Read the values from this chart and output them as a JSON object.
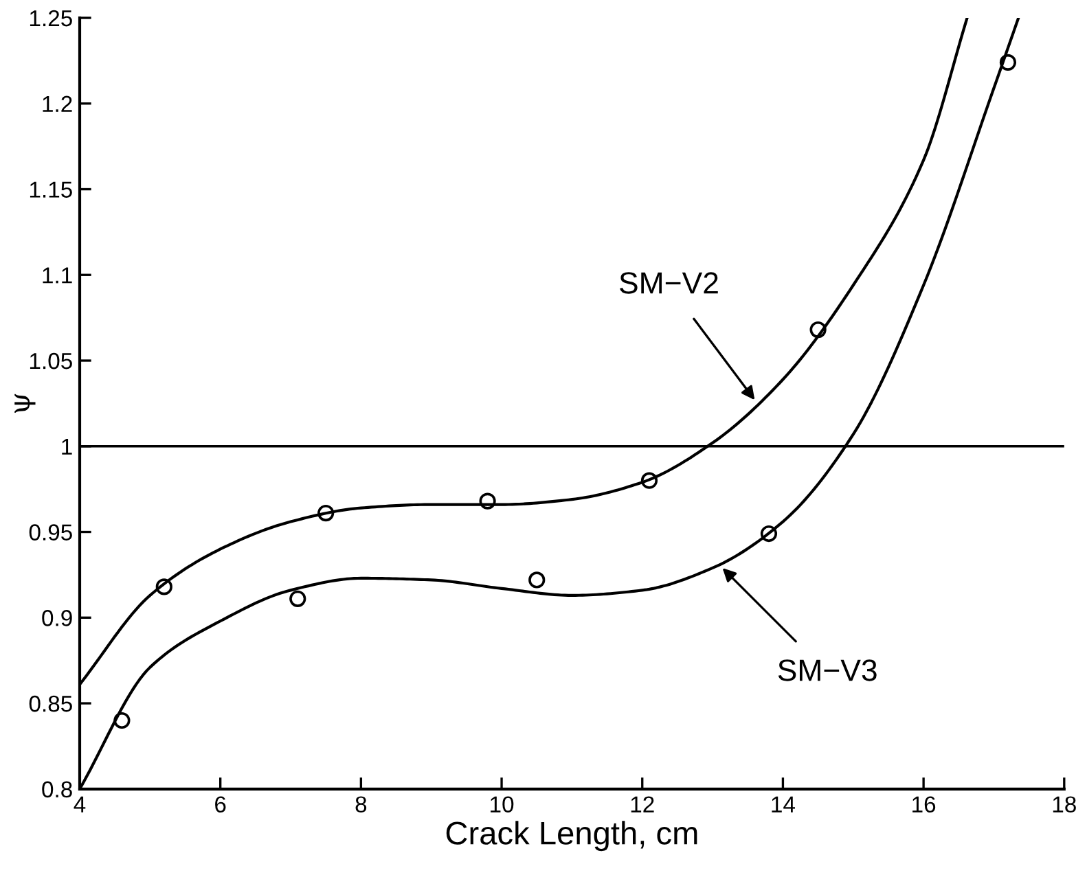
{
  "chart_data": {
    "type": "line",
    "xlabel": "Crack Length, cm",
    "ylabel": "ψ",
    "xlim": [
      4,
      18
    ],
    "ylim": [
      0.8,
      1.25
    ],
    "xticks": [
      4,
      6,
      8,
      10,
      12,
      14,
      16,
      18
    ],
    "yticks": [
      0.8,
      0.85,
      0.9,
      0.95,
      1,
      1.05,
      1.1,
      1.15,
      1.2,
      1.25
    ],
    "grid": false,
    "line_style": "solid",
    "series": [
      {
        "color": "#000000",
        "marker": "none",
        "x": [
          4,
          5,
          6,
          7,
          8,
          9,
          10,
          11,
          12,
          13,
          14,
          15,
          16,
          16.62
        ],
        "values": [
          0.861,
          0.913,
          0.94,
          0.956,
          0.964,
          0.966,
          0.966,
          0.969,
          0.979,
          1.002,
          1.039,
          1.094,
          1.167,
          1.25
        ]
      },
      {
        "color": "#000000",
        "marker": "none",
        "x": [
          4,
          5,
          6,
          7,
          8,
          9,
          10,
          11,
          12,
          13,
          14,
          15,
          16,
          17,
          17.35
        ],
        "values": [
          0.8,
          0.871,
          0.898,
          0.916,
          0.923,
          0.922,
          0.917,
          0.913,
          0.916,
          0.929,
          0.956,
          1.007,
          1.094,
          1.209,
          1.25
        ]
      },
      {
        "type": "scatter",
        "color": "#000000",
        "marker": "circle",
        "x": [
          5.2,
          7.5,
          9.8,
          12.1,
          14.5
        ],
        "values": [
          0.918,
          0.961,
          0.968,
          0.98,
          1.068
        ]
      },
      {
        "type": "scatter",
        "color": "#000000",
        "marker": "circle",
        "x": [
          4.6,
          7.1,
          10.5,
          13.8,
          17.2
        ],
        "values": [
          0.84,
          0.911,
          0.922,
          0.949,
          1.224
        ]
      }
    ],
    "ref_lines": [
      {
        "axis": "y",
        "value": 1,
        "color": "#000000"
      }
    ],
    "annotations": [
      {
        "text": "SM−V2",
        "x": 13.6,
        "y": 1.027
      },
      {
        "text": "SM−V3",
        "x": 13.14,
        "y": 0.929
      }
    ]
  }
}
